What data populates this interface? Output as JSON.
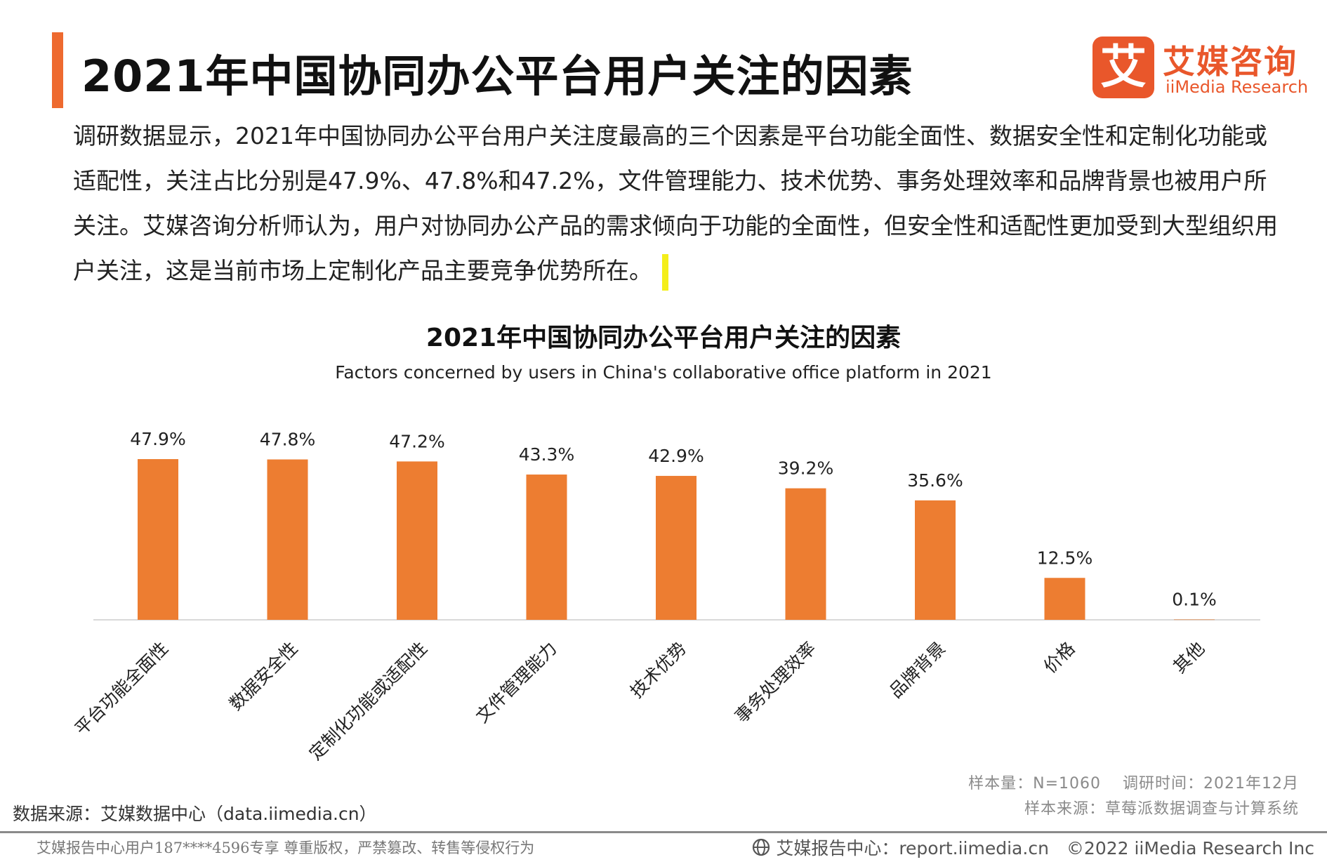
{
  "header": {
    "title": "2021年中国协同办公平台用户关注的因素",
    "logo_cn": "艾媒咨询",
    "logo_en": "iiMedia Research",
    "logo_glyph": "艾",
    "accent_color": "#ee6a2f"
  },
  "intro": {
    "text": "调研数据显示，2021年中国协同办公平台用户关注度最高的三个因素是平台功能全面性、数据安全性和定制化功能或适配性，关注占比分别是47.9%、47.8%和47.2%，文件管理能力、技术优势、事务处理效率和品牌背景也被用户所关注。艾媒咨询分析师认为，用户对协同办公产品的需求倾向于功能的全面性，但安全性和适配性更加受到大型组织用户关注，这是当前市场上定制化产品主要竞争优势所在。"
  },
  "chart_data": {
    "type": "bar",
    "title": "2021年中国协同办公平台用户关注的因素",
    "subtitle": "Factors concerned by users in China's collaborative office platform in 2021",
    "categories": [
      "平台功能全面性",
      "数据安全性",
      "定制化功能或适配性",
      "文件管理能力",
      "技术优势",
      "事务处理效率",
      "品牌背景",
      "价格",
      "其他"
    ],
    "values": [
      47.9,
      47.8,
      47.2,
      43.3,
      42.9,
      39.2,
      35.6,
      12.5,
      0.1
    ],
    "value_labels": [
      "47.9%",
      "47.8%",
      "47.2%",
      "43.3%",
      "42.9%",
      "39.2%",
      "35.6%",
      "12.5%",
      "0.1%"
    ],
    "unit": "%",
    "ylim": [
      0,
      50
    ],
    "grid": false,
    "legend": "none",
    "bar_color": "#ed7d31",
    "xlabel": "",
    "ylabel": ""
  },
  "meta": {
    "sample_size": "样本量：N=1060　 调研时间：2021年12月",
    "sample_source": "样本来源：草莓派数据调查与计算系统"
  },
  "source": "数据来源：艾媒数据中心（data.iimedia.cn）",
  "footer": {
    "left": "艾媒报告中心用户187****4596专享 尊重版权，严禁篡改、转售等侵权行为",
    "right": "艾媒报告中心：report.iimedia.cn　©2022  iiMedia Research  Inc"
  }
}
